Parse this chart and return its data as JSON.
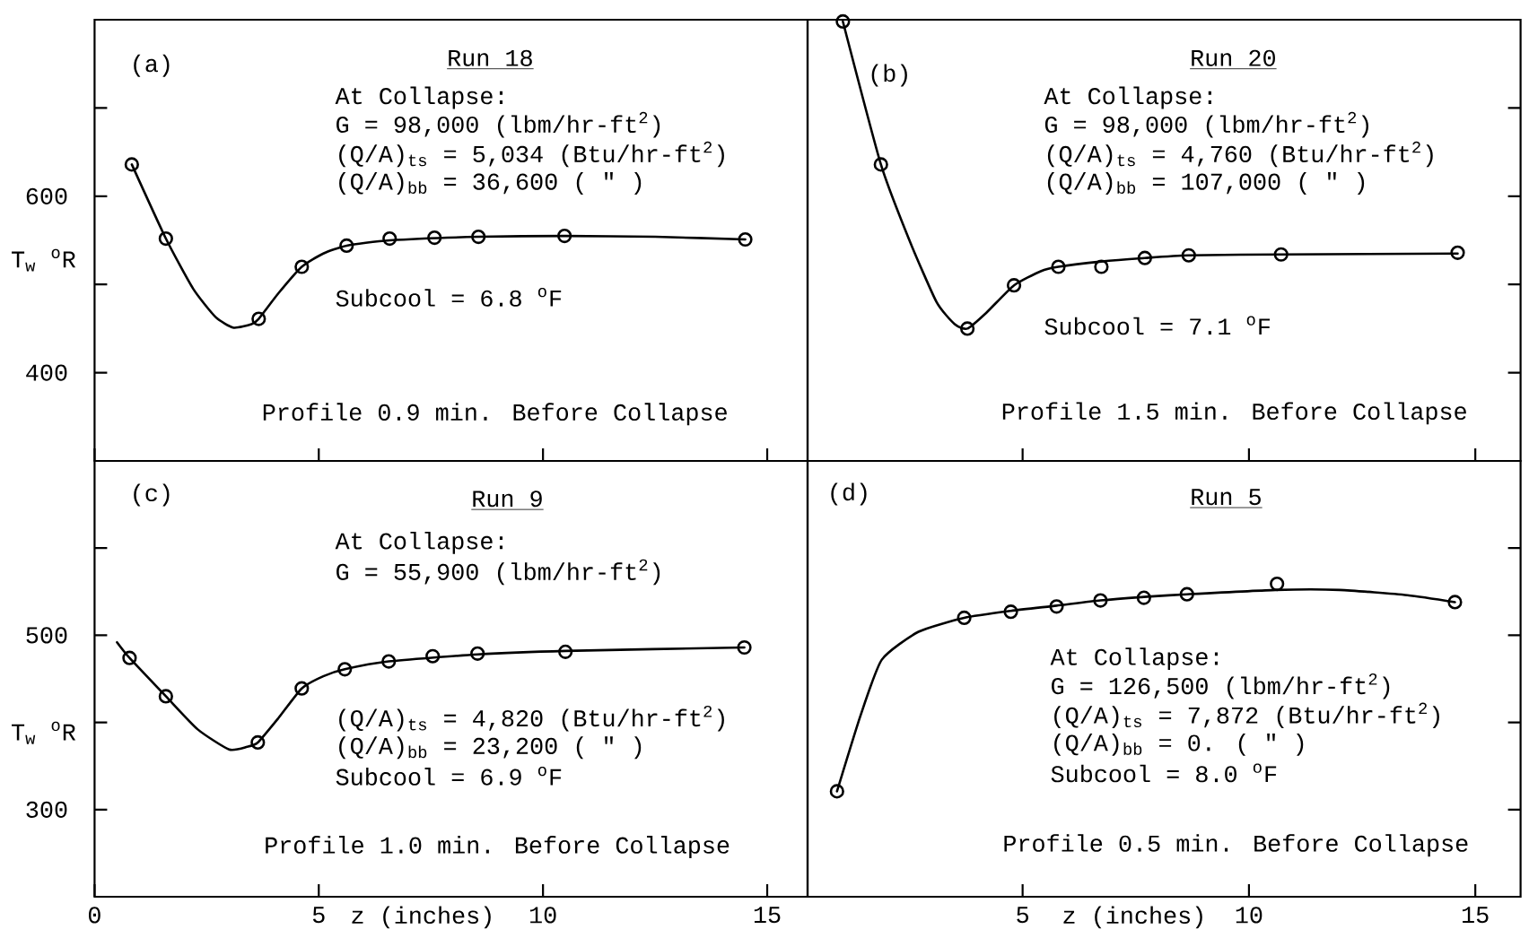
{
  "chart_data": [
    {
      "type": "line",
      "title": "Run 18",
      "ylabel": "T$_{w}$ $^{o}$R",
      "xlim": [
        0,
        15.9
      ],
      "ylim": [
        300,
        800
      ],
      "xticks": [
        0,
        5,
        10,
        15
      ],
      "yticks": [
        400,
        {
          "value": 500,
          "label": null
        },
        600,
        {
          "value": 700,
          "label": null
        }
      ],
      "tick_labels": "y",
      "annotations": [
        "(a)",
        "At Collapse:",
        "G = 98,000 (lbm/hr-ft$^{2}$)",
        "(Q/A)$_{ts}$ = 5,034 (Btu/hr-ft$^{2}$)",
        "(Q/A)$_{bb}$ = 36,600 (   \"   )",
        "Subcool = 6.8 $^{o}$F",
        "Profile 0.9 min. Before Collapse"
      ],
      "series": [
        {
          "type": "scatter",
          "marker": "circle",
          "color": "#000000",
          "x": [
            0.83,
            1.59,
            3.66,
            4.62,
            5.62,
            6.58,
            7.58,
            8.56,
            10.48,
            14.51
          ],
          "values": [
            636,
            552,
            461,
            520,
            544,
            552,
            553,
            554,
            555,
            551
          ]
        },
        {
          "type": "line",
          "marker": "none",
          "color": "#000000",
          "x": [
            0.83,
            1.59,
            2.2,
            2.7,
            3.1,
            3.5,
            3.66,
            4.1,
            4.62,
            5.1,
            5.62,
            6.58,
            8.56,
            10.5,
            12.5,
            14.51
          ],
          "values": [
            636,
            552,
            495,
            463,
            451,
            455,
            461,
            490,
            520,
            535,
            544,
            550,
            554,
            555,
            554,
            551
          ]
        }
      ]
    },
    {
      "type": "line",
      "title": "Run 20",
      "xlim": [
        0.25,
        16
      ],
      "ylim": [
        300,
        800
      ],
      "xticks": [
        5,
        10,
        15
      ],
      "yticks": [
        400,
        500,
        600,
        700
      ],
      "tick_labels": false,
      "annotations": [
        "(b)",
        "At Collapse:",
        "G = 98,000 (lbm/hr-ft$^{2}$)",
        "(Q/A)$_{ts}$ = 4,760 (Btu/hr-ft$^{2}$)",
        "(Q/A)$_{bb}$ = 107,000 (   \"   )",
        "Subcool = 7.1 $^{o}$F",
        "Profile 1.5 min. Before Collapse"
      ],
      "series": [
        {
          "type": "scatter",
          "marker": "circle",
          "color": "#000000",
          "x": [
            1.03,
            1.87,
            3.78,
            4.81,
            5.79,
            6.74,
            7.7,
            8.67,
            10.71,
            14.61
          ],
          "values": [
            798,
            636,
            450,
            499,
            520,
            520,
            530,
            533,
            534,
            536
          ]
        },
        {
          "type": "line",
          "marker": "none",
          "color": "#000000",
          "x": [
            1.03,
            1.87,
            2.5,
            3.1,
            3.5,
            3.78,
            4.2,
            4.81,
            5.4,
            5.79,
            6.74,
            7.7,
            8.67,
            10.71,
            14.61
          ],
          "values": [
            798,
            636,
            550,
            480,
            455,
            450,
            468,
            499,
            515,
            520,
            526,
            530,
            533,
            534,
            535
          ]
        }
      ]
    },
    {
      "type": "line",
      "title": "Run 9",
      "ylabel": "T$_{w}$ $^{o}$R",
      "xlabel": "z (inches)",
      "xlim": [
        0,
        15.9
      ],
      "ylim": [
        200,
        700
      ],
      "xticks": [
        0,
        5,
        10,
        15
      ],
      "yticks": [
        300,
        {
          "value": 400,
          "label": null
        },
        500,
        {
          "value": 600,
          "label": null
        }
      ],
      "annotations": [
        "(c)",
        "At Collapse:",
        "G = 55,900 (lbm/hr-ft$^{2}$)",
        "(Q/A)$_{ts}$ = 4,820 (Btu/hr-ft$^{2}$)",
        "(Q/A)$_{bb}$ = 23,200 (   \"   )",
        "Subcool = 6.9 $^{o}$F",
        "Profile 1.0 min. Before Collapse"
      ],
      "series": [
        {
          "type": "scatter",
          "marker": "circle",
          "color": "#000000",
          "x": [
            0.78,
            1.59,
            3.64,
            4.62,
            5.58,
            6.56,
            7.54,
            8.54,
            10.5,
            14.49
          ],
          "values": [
            474,
            430,
            377,
            439,
            461,
            470,
            476,
            479,
            481,
            486
          ]
        },
        {
          "type": "line",
          "marker": "none",
          "color": "#000000",
          "x": [
            0.5,
            0.78,
            1.59,
            2.3,
            3.0,
            3.4,
            3.64,
            4.1,
            4.62,
            5.1,
            5.58,
            6.56,
            8.54,
            10.5,
            14.49
          ],
          "values": [
            492,
            474,
            430,
            392,
            369,
            372,
            377,
            405,
            439,
            453,
            461,
            470,
            478,
            482,
            486
          ]
        }
      ]
    },
    {
      "type": "line",
      "title": "Run 5",
      "xlabel": "z (inches)",
      "xlim": [
        0.25,
        16
      ],
      "ylim": [
        200,
        700
      ],
      "xticks": [
        5,
        10,
        15
      ],
      "yticks": [
        {
          "value": 300,
          "label": null
        },
        {
          "value": 400,
          "label": null
        },
        {
          "value": 500,
          "label": null
        },
        {
          "value": 600,
          "label": null
        }
      ],
      "tick_labels": "x",
      "annotations": [
        "(d)",
        "At Collapse:",
        "G = 126,500 (lbm/hr-ft$^{2}$)",
        "(Q/A)$_{ts}$ = 7,872 (Btu/hr-ft$^{2}$)",
        "(Q/A)$_{bb}$ = 0.      (   \"   )",
        "Subcool = 8.0 $^{o}$F",
        "Profile 0.5 min. Before Collapse"
      ],
      "series": [
        {
          "type": "scatter",
          "marker": "circle",
          "color": "#000000",
          "x": [
            0.9,
            3.71,
            4.74,
            5.75,
            6.72,
            7.68,
            8.63,
            10.62,
            14.55
          ],
          "values": [
            321,
            520,
            527,
            533,
            540,
            543,
            547,
            559,
            538
          ]
        },
        {
          "type": "line",
          "marker": "none",
          "color": "#000000",
          "x": [
            0.9,
            1.42,
            1.89,
            2.7,
            3.71,
            4.74,
            5.75,
            6.72,
            7.68,
            8.63,
            10.6,
            12.0,
            13.5,
            14.55
          ],
          "values": [
            321,
            408,
            472,
            504,
            520,
            528,
            534,
            540,
            544,
            547,
            552,
            552,
            546,
            538
          ]
        }
      ]
    }
  ]
}
